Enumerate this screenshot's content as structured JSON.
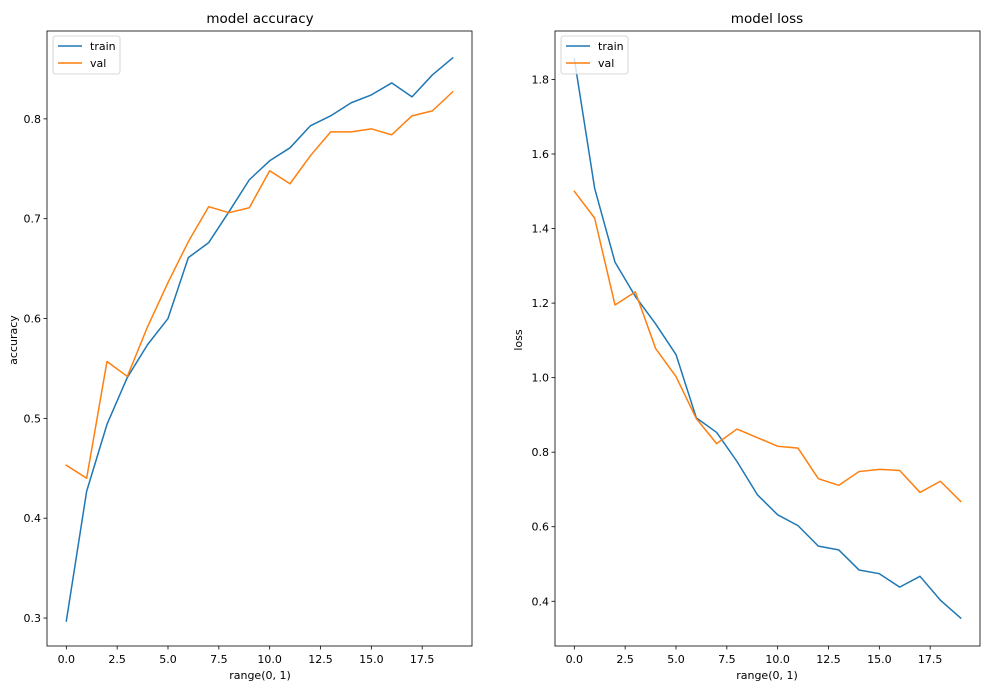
{
  "chart_data": [
    {
      "type": "line",
      "title": "model accuracy",
      "xlabel": "range(0, 1)",
      "ylabel": "accuracy",
      "xlim": [
        -0.95,
        19.95
      ],
      "ylim": [
        0.272,
        0.888
      ],
      "xticks": [
        0,
        2.5,
        5,
        7.5,
        10,
        12.5,
        15,
        17.5
      ],
      "xtick_labels": [
        "0.0",
        "2.5",
        "5.0",
        "7.5",
        "10.0",
        "12.5",
        "15.0",
        "17.5"
      ],
      "yticks": [
        0.3,
        0.4,
        0.5,
        0.6,
        0.7,
        0.8
      ],
      "ytick_labels": [
        "0.3",
        "0.4",
        "0.5",
        "0.6",
        "0.7",
        "0.8"
      ],
      "legend_position": "top-left",
      "grid": false,
      "x": [
        0,
        1,
        2,
        3,
        4,
        5,
        6,
        7,
        8,
        9,
        10,
        11,
        12,
        13,
        14,
        15,
        16,
        17,
        18,
        19
      ],
      "series": [
        {
          "name": "train",
          "color": "#1f77b4",
          "values": [
            0.297,
            0.427,
            0.494,
            0.541,
            0.574,
            0.6,
            0.661,
            0.676,
            0.707,
            0.739,
            0.758,
            0.771,
            0.793,
            0.803,
            0.816,
            0.824,
            0.836,
            0.822,
            0.844,
            0.861
          ]
        },
        {
          "name": "val",
          "color": "#ff7f0e",
          "values": [
            0.453,
            0.44,
            0.557,
            0.542,
            0.592,
            0.636,
            0.677,
            0.712,
            0.706,
            0.711,
            0.748,
            0.735,
            0.763,
            0.787,
            0.787,
            0.79,
            0.784,
            0.803,
            0.808,
            0.827
          ]
        }
      ]
    },
    {
      "type": "line",
      "title": "model loss",
      "xlabel": "range(0, 1)",
      "ylabel": "loss",
      "xlim": [
        -0.95,
        19.95
      ],
      "ylim": [
        0.28,
        1.93
      ],
      "xticks": [
        0,
        2.5,
        5,
        7.5,
        10,
        12.5,
        15,
        17.5
      ],
      "xtick_labels": [
        "0.0",
        "2.5",
        "5.0",
        "7.5",
        "10.0",
        "12.5",
        "15.0",
        "17.5"
      ],
      "yticks": [
        0.4,
        0.6,
        0.8,
        1.0,
        1.2,
        1.4,
        1.6,
        1.8
      ],
      "ytick_labels": [
        "0.4",
        "0.6",
        "0.8",
        "1.0",
        "1.2",
        "1.4",
        "1.6",
        "1.8"
      ],
      "legend_position": "top-left",
      "grid": false,
      "x": [
        0,
        1,
        2,
        3,
        4,
        5,
        6,
        7,
        8,
        9,
        10,
        11,
        12,
        13,
        14,
        15,
        16,
        17,
        18,
        19
      ],
      "series": [
        {
          "name": "train",
          "color": "#1f77b4",
          "values": [
            1.855,
            1.508,
            1.31,
            1.218,
            1.144,
            1.062,
            0.892,
            0.853,
            0.775,
            0.686,
            0.632,
            0.603,
            0.548,
            0.538,
            0.484,
            0.474,
            0.438,
            0.467,
            0.403,
            0.355
          ]
        },
        {
          "name": "val",
          "color": "#ff7f0e",
          "values": [
            1.5,
            1.428,
            1.195,
            1.23,
            1.078,
            1.003,
            0.89,
            0.823,
            0.862,
            0.839,
            0.816,
            0.811,
            0.729,
            0.711,
            0.748,
            0.754,
            0.751,
            0.692,
            0.722,
            0.668
          ]
        }
      ]
    }
  ]
}
